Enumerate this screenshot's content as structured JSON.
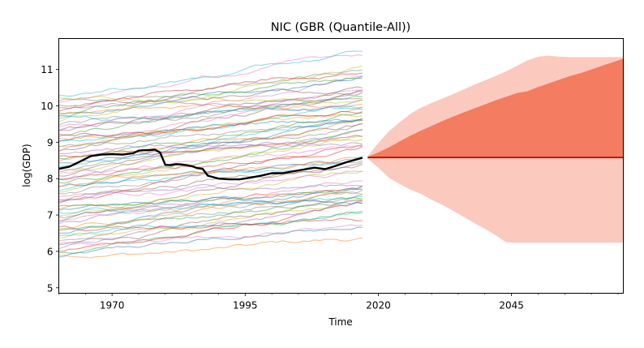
{
  "chart_data": {
    "type": "line",
    "title": "NIC (GBR (Quantile-All))",
    "xlabel": "Time",
    "ylabel": "log(GDP)",
    "xlim": [
      1960,
      2066
    ],
    "ylim": [
      4.85,
      11.85
    ],
    "x_ticks": [
      1970,
      1995,
      2020,
      2045
    ],
    "y_ticks": [
      5,
      6,
      7,
      8,
      9,
      10,
      11
    ],
    "grid": false,
    "background_series": {
      "description": "many thin semi-transparent country log(GDP) paths",
      "x_range": [
        1960,
        2017
      ],
      "approx_count": 70,
      "start_range": [
        5.8,
        10.3
      ],
      "end_range": [
        6.5,
        11.3
      ]
    },
    "highlight_series": {
      "name": "",
      "color": "#000000",
      "x": [
        1960,
        1962,
        1964,
        1966,
        1968,
        1970,
        1972,
        1974,
        1975,
        1976,
        1977,
        1978,
        1979,
        1980,
        1981,
        1982,
        1983,
        1984,
        1985,
        1986,
        1987,
        1988,
        1990,
        1992,
        1994,
        1996,
        1998,
        2000,
        2002,
        2004,
        2006,
        2008,
        2010,
        2012,
        2014,
        2016,
        2017
      ],
      "y": [
        8.27,
        8.33,
        8.47,
        8.62,
        8.66,
        8.67,
        8.66,
        8.7,
        8.77,
        8.78,
        8.78,
        8.8,
        8.72,
        8.38,
        8.37,
        8.4,
        8.39,
        8.37,
        8.34,
        8.29,
        8.27,
        8.08,
        8.0,
        7.98,
        7.98,
        8.03,
        8.08,
        8.15,
        8.15,
        8.2,
        8.25,
        8.3,
        8.26,
        8.35,
        8.45,
        8.53,
        8.57
      ]
    },
    "forecast": {
      "x": [
        2018,
        2020,
        2022,
        2024,
        2026,
        2028,
        2030,
        2032,
        2034,
        2036,
        2038,
        2040,
        2042,
        2044,
        2046,
        2048,
        2050,
        2052,
        2054,
        2056,
        2058,
        2060,
        2062,
        2064,
        2066
      ],
      "median": 8.58,
      "inner_upper": [
        8.6,
        8.72,
        8.86,
        9.02,
        9.18,
        9.32,
        9.45,
        9.58,
        9.7,
        9.82,
        9.93,
        10.04,
        10.15,
        10.25,
        10.35,
        10.4,
        10.52,
        10.62,
        10.72,
        10.82,
        10.9,
        11.0,
        11.1,
        11.2,
        11.3
      ],
      "outer_upper": [
        8.62,
        8.98,
        9.3,
        9.55,
        9.78,
        9.95,
        10.08,
        10.2,
        10.32,
        10.45,
        10.58,
        10.7,
        10.82,
        10.95,
        11.1,
        11.25,
        11.35,
        11.38,
        11.35,
        11.34,
        11.34,
        11.34,
        11.34,
        11.34,
        11.34
      ],
      "outer_lower": [
        8.55,
        8.3,
        8.02,
        7.85,
        7.7,
        7.58,
        7.42,
        7.28,
        7.12,
        6.95,
        6.78,
        6.62,
        6.45,
        6.25,
        6.24,
        6.24,
        6.24,
        6.24,
        6.24,
        6.24,
        6.24,
        6.24,
        6.24,
        6.24,
        6.24
      ],
      "colors": {
        "inner_band": "#f47c60",
        "outer_band": "#fcc9bf",
        "median_line": "#b51a00"
      }
    }
  }
}
